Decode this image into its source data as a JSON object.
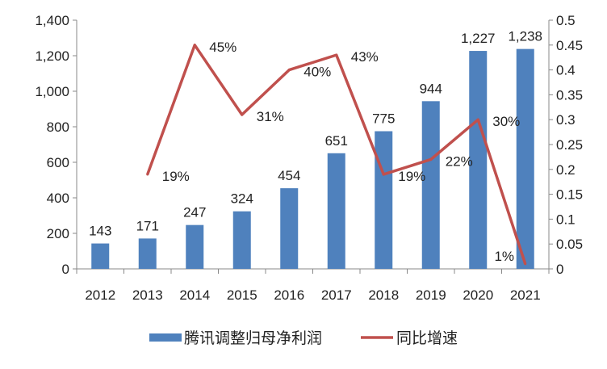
{
  "chart_data": {
    "type": "bar+line",
    "categories": [
      "2012",
      "2013",
      "2014",
      "2015",
      "2016",
      "2017",
      "2018",
      "2019",
      "2020",
      "2021"
    ],
    "series": [
      {
        "name": "腾讯调整归母净利润",
        "type": "bar",
        "axis": "left",
        "color": "#4F81BD",
        "values": [
          143,
          171,
          247,
          324,
          454,
          651,
          775,
          944,
          1227,
          1238
        ],
        "labels": [
          "143",
          "171",
          "247",
          "324",
          "454",
          "651",
          "775",
          "944",
          "1,227",
          "1,238"
        ]
      },
      {
        "name": "同比增速",
        "type": "line",
        "axis": "right",
        "color": "#C0504D",
        "values": [
          null,
          0.19,
          0.45,
          0.31,
          0.4,
          0.43,
          0.19,
          0.22,
          0.3,
          0.01
        ],
        "labels": [
          "",
          "19%",
          "45%",
          "31%",
          "40%",
          "43%",
          "19%",
          "22%",
          "30%",
          "1%"
        ]
      }
    ],
    "y_left": {
      "range": [
        0,
        1400
      ],
      "ticks": [
        "0",
        "200",
        "400",
        "600",
        "800",
        "1,000",
        "1,200",
        "1,400"
      ]
    },
    "y_right": {
      "range": [
        0,
        0.5
      ],
      "ticks": [
        "0",
        "0.05",
        "0.1",
        "0.15",
        "0.2",
        "0.25",
        "0.3",
        "0.35",
        "0.4",
        "0.45",
        "0.5"
      ]
    },
    "grid": false,
    "legend": "bottom"
  }
}
